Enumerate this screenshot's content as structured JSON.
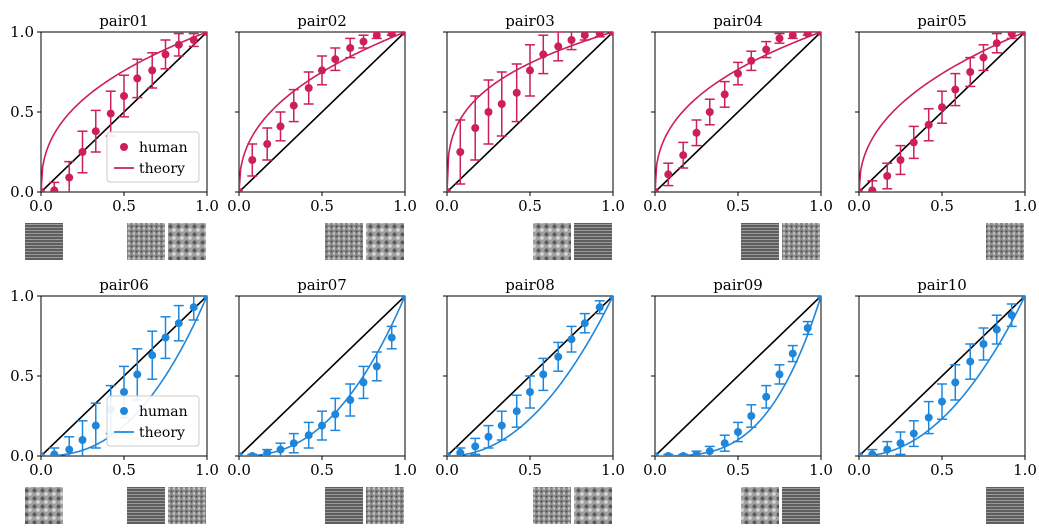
{
  "chart_data": [
    {
      "type": "scatter",
      "title": "pair01",
      "xlim": [
        0,
        1
      ],
      "ylim": [
        0,
        1
      ],
      "color": "#cc1f5c",
      "legend": true,
      "xticks": [
        "0.0",
        "0.5",
        "1.0"
      ],
      "yticks": [
        "0.0",
        "0.5",
        "1.0"
      ],
      "series": [
        {
          "name": "human",
          "x": [
            0,
            0.08,
            0.17,
            0.25,
            0.33,
            0.42,
            0.5,
            0.58,
            0.67,
            0.75,
            0.83,
            0.92,
            1.0
          ],
          "y": [
            0,
            0.01,
            0.09,
            0.25,
            0.38,
            0.49,
            0.6,
            0.71,
            0.76,
            0.86,
            0.92,
            0.95,
            1.0
          ],
          "err": [
            0,
            0.05,
            0.1,
            0.13,
            0.13,
            0.14,
            0.13,
            0.12,
            0.11,
            0.09,
            0.07,
            0.04,
            0
          ]
        },
        {
          "name": "theory",
          "curve": "concave",
          "p": 2.5
        }
      ],
      "identity_line": true,
      "texture_thumbs": [
        "left",
        "right",
        "right"
      ]
    },
    {
      "type": "scatter",
      "title": "pair02",
      "xlim": [
        0,
        1
      ],
      "ylim": [
        0,
        1
      ],
      "color": "#cc1f5c",
      "legend": false,
      "xticks": [
        "0.0",
        "0.5",
        "1.0"
      ],
      "yticks": [],
      "series": [
        {
          "name": "human",
          "x": [
            0,
            0.08,
            0.17,
            0.25,
            0.33,
            0.42,
            0.5,
            0.58,
            0.67,
            0.75,
            0.83,
            0.92,
            1.0
          ],
          "y": [
            0,
            0.2,
            0.3,
            0.41,
            0.54,
            0.65,
            0.76,
            0.83,
            0.9,
            0.94,
            0.98,
            0.99,
            1.0
          ],
          "err": [
            0,
            0.1,
            0.1,
            0.09,
            0.1,
            0.1,
            0.09,
            0.07,
            0.06,
            0.04,
            0.02,
            0.01,
            0
          ]
        },
        {
          "name": "theory",
          "curve": "concave",
          "p": 2.4
        }
      ],
      "identity_line": true,
      "texture_thumbs": [
        "right",
        "right"
      ]
    },
    {
      "type": "scatter",
      "title": "pair03",
      "xlim": [
        0,
        1
      ],
      "ylim": [
        0,
        1
      ],
      "color": "#cc1f5c",
      "legend": false,
      "xticks": [
        "0.0",
        "0.5",
        "1.0"
      ],
      "yticks": [],
      "series": [
        {
          "name": "human",
          "x": [
            0,
            0.08,
            0.17,
            0.25,
            0.33,
            0.42,
            0.5,
            0.58,
            0.67,
            0.75,
            0.83,
            0.92,
            1.0
          ],
          "y": [
            0,
            0.25,
            0.4,
            0.5,
            0.55,
            0.62,
            0.76,
            0.86,
            0.91,
            0.95,
            0.98,
            0.99,
            1.0
          ],
          "err": [
            0,
            0.2,
            0.2,
            0.2,
            0.2,
            0.18,
            0.16,
            0.12,
            0.09,
            0.06,
            0.03,
            0.02,
            0
          ]
        },
        {
          "name": "theory",
          "curve": "concave",
          "p": 3.2
        }
      ],
      "identity_line": true,
      "texture_thumbs": [
        "right",
        "right"
      ]
    },
    {
      "type": "scatter",
      "title": "pair04",
      "xlim": [
        0,
        1
      ],
      "ylim": [
        0,
        1
      ],
      "color": "#cc1f5c",
      "legend": false,
      "xticks": [
        "0.0",
        "0.5",
        "1.0"
      ],
      "yticks": [],
      "series": [
        {
          "name": "human",
          "x": [
            0,
            0.08,
            0.17,
            0.25,
            0.33,
            0.42,
            0.5,
            0.58,
            0.67,
            0.75,
            0.83,
            0.92,
            1.0
          ],
          "y": [
            0,
            0.11,
            0.23,
            0.37,
            0.5,
            0.61,
            0.74,
            0.82,
            0.89,
            0.96,
            0.98,
            0.99,
            1.0
          ],
          "err": [
            0,
            0.07,
            0.08,
            0.08,
            0.08,
            0.08,
            0.07,
            0.06,
            0.05,
            0.03,
            0.02,
            0.01,
            0
          ]
        },
        {
          "name": "theory",
          "curve": "concave",
          "p": 2.6
        }
      ],
      "identity_line": true,
      "texture_thumbs": [
        "right",
        "right"
      ]
    },
    {
      "type": "scatter",
      "title": "pair05",
      "xlim": [
        0,
        1
      ],
      "ylim": [
        0,
        1
      ],
      "color": "#cc1f5c",
      "legend": false,
      "xticks": [
        "0.0",
        "0.5",
        "1.0"
      ],
      "yticks": [],
      "series": [
        {
          "name": "human",
          "x": [
            0,
            0.08,
            0.17,
            0.25,
            0.33,
            0.42,
            0.5,
            0.58,
            0.67,
            0.75,
            0.83,
            0.92,
            1.0
          ],
          "y": [
            0,
            0.01,
            0.1,
            0.2,
            0.31,
            0.42,
            0.53,
            0.64,
            0.75,
            0.84,
            0.93,
            0.99,
            1.0
          ],
          "err": [
            0,
            0.06,
            0.08,
            0.09,
            0.1,
            0.1,
            0.1,
            0.1,
            0.09,
            0.08,
            0.06,
            0.03,
            0
          ]
        },
        {
          "name": "theory",
          "curve": "concave",
          "p": 2.3
        }
      ],
      "identity_line": true,
      "texture_thumbs": [
        "right"
      ]
    },
    {
      "type": "scatter",
      "title": "pair06",
      "xlim": [
        0,
        1
      ],
      "ylim": [
        0,
        1
      ],
      "color": "#1f87db",
      "legend": true,
      "xticks": [
        "0.0",
        "0.5",
        "1.0"
      ],
      "yticks": [
        "0.0",
        "0.5",
        "1.0"
      ],
      "series": [
        {
          "name": "human",
          "x": [
            0,
            0.08,
            0.17,
            0.25,
            0.33,
            0.42,
            0.5,
            0.58,
            0.67,
            0.75,
            0.83,
            0.92,
            1.0
          ],
          "y": [
            0,
            0.01,
            0.04,
            0.1,
            0.19,
            0.29,
            0.4,
            0.51,
            0.63,
            0.74,
            0.83,
            0.93,
            1.0
          ],
          "err": [
            0,
            0.04,
            0.08,
            0.12,
            0.14,
            0.15,
            0.16,
            0.16,
            0.15,
            0.13,
            0.11,
            0.08,
            0
          ]
        },
        {
          "name": "theory",
          "curve": "convex",
          "p": 2.4
        }
      ],
      "identity_line": true,
      "texture_thumbs": [
        "left",
        "right",
        "right"
      ]
    },
    {
      "type": "scatter",
      "title": "pair07",
      "xlim": [
        0,
        1
      ],
      "ylim": [
        0,
        1
      ],
      "color": "#1f87db",
      "legend": false,
      "xticks": [
        "0.0",
        "0.5",
        "1.0"
      ],
      "yticks": [],
      "series": [
        {
          "name": "human",
          "x": [
            0,
            0.08,
            0.17,
            0.25,
            0.33,
            0.42,
            0.5,
            0.58,
            0.67,
            0.75,
            0.83,
            0.92,
            1.0
          ],
          "y": [
            0,
            0,
            0.02,
            0.04,
            0.08,
            0.13,
            0.19,
            0.26,
            0.35,
            0.46,
            0.56,
            0.74,
            1.0
          ],
          "err": [
            0,
            0.01,
            0.02,
            0.04,
            0.06,
            0.08,
            0.09,
            0.1,
            0.1,
            0.1,
            0.09,
            0.07,
            0
          ]
        },
        {
          "name": "theory",
          "curve": "convex",
          "p": 2.4
        }
      ],
      "identity_line": true,
      "texture_thumbs": [
        "right",
        "right"
      ]
    },
    {
      "type": "scatter",
      "title": "pair08",
      "xlim": [
        0,
        1
      ],
      "ylim": [
        0,
        1
      ],
      "color": "#1f87db",
      "legend": false,
      "xticks": [
        "0.0",
        "0.5",
        "1.0"
      ],
      "yticks": [],
      "series": [
        {
          "name": "human",
          "x": [
            0,
            0.08,
            0.17,
            0.25,
            0.33,
            0.42,
            0.5,
            0.58,
            0.67,
            0.75,
            0.83,
            0.92,
            1.0
          ],
          "y": [
            0,
            0.02,
            0.06,
            0.12,
            0.19,
            0.28,
            0.4,
            0.51,
            0.62,
            0.73,
            0.83,
            0.93,
            1.0
          ],
          "err": [
            0,
            0.03,
            0.05,
            0.07,
            0.09,
            0.1,
            0.1,
            0.1,
            0.09,
            0.08,
            0.06,
            0.04,
            0
          ]
        },
        {
          "name": "theory",
          "curve": "convex",
          "p": 2.1
        }
      ],
      "identity_line": true,
      "texture_thumbs": [
        "right",
        "right"
      ]
    },
    {
      "type": "scatter",
      "title": "pair09",
      "xlim": [
        0,
        1
      ],
      "ylim": [
        0,
        1
      ],
      "color": "#1f87db",
      "legend": false,
      "xticks": [
        "0.0",
        "0.5",
        "1.0"
      ],
      "yticks": [],
      "series": [
        {
          "name": "human",
          "x": [
            0,
            0.08,
            0.17,
            0.25,
            0.33,
            0.42,
            0.5,
            0.58,
            0.67,
            0.75,
            0.83,
            0.92,
            1.0
          ],
          "y": [
            0,
            0,
            0,
            0.01,
            0.03,
            0.08,
            0.15,
            0.25,
            0.37,
            0.51,
            0.64,
            0.8,
            1.0
          ],
          "err": [
            0,
            0.01,
            0.01,
            0.02,
            0.03,
            0.05,
            0.06,
            0.07,
            0.07,
            0.06,
            0.05,
            0.04,
            0
          ]
        },
        {
          "name": "theory",
          "curve": "convex",
          "p": 3.3
        }
      ],
      "identity_line": true,
      "texture_thumbs": [
        "right",
        "right"
      ]
    },
    {
      "type": "scatter",
      "title": "pair10",
      "xlim": [
        0,
        1
      ],
      "ylim": [
        0,
        1
      ],
      "color": "#1f87db",
      "legend": false,
      "xticks": [
        "0.0",
        "0.5",
        "1.0"
      ],
      "yticks": [],
      "series": [
        {
          "name": "human",
          "x": [
            0,
            0.08,
            0.17,
            0.25,
            0.33,
            0.42,
            0.5,
            0.58,
            0.67,
            0.75,
            0.83,
            0.92,
            1.0
          ],
          "y": [
            0,
            0.01,
            0.04,
            0.08,
            0.14,
            0.24,
            0.34,
            0.46,
            0.59,
            0.7,
            0.79,
            0.88,
            1.0
          ],
          "err": [
            0,
            0.03,
            0.05,
            0.07,
            0.08,
            0.1,
            0.11,
            0.11,
            0.11,
            0.1,
            0.09,
            0.07,
            0
          ]
        },
        {
          "name": "theory",
          "curve": "convex",
          "p": 2.1
        }
      ],
      "identity_line": true,
      "texture_thumbs": [
        "right"
      ]
    }
  ],
  "legend": {
    "human_label": "human",
    "theory_label": "theory"
  }
}
